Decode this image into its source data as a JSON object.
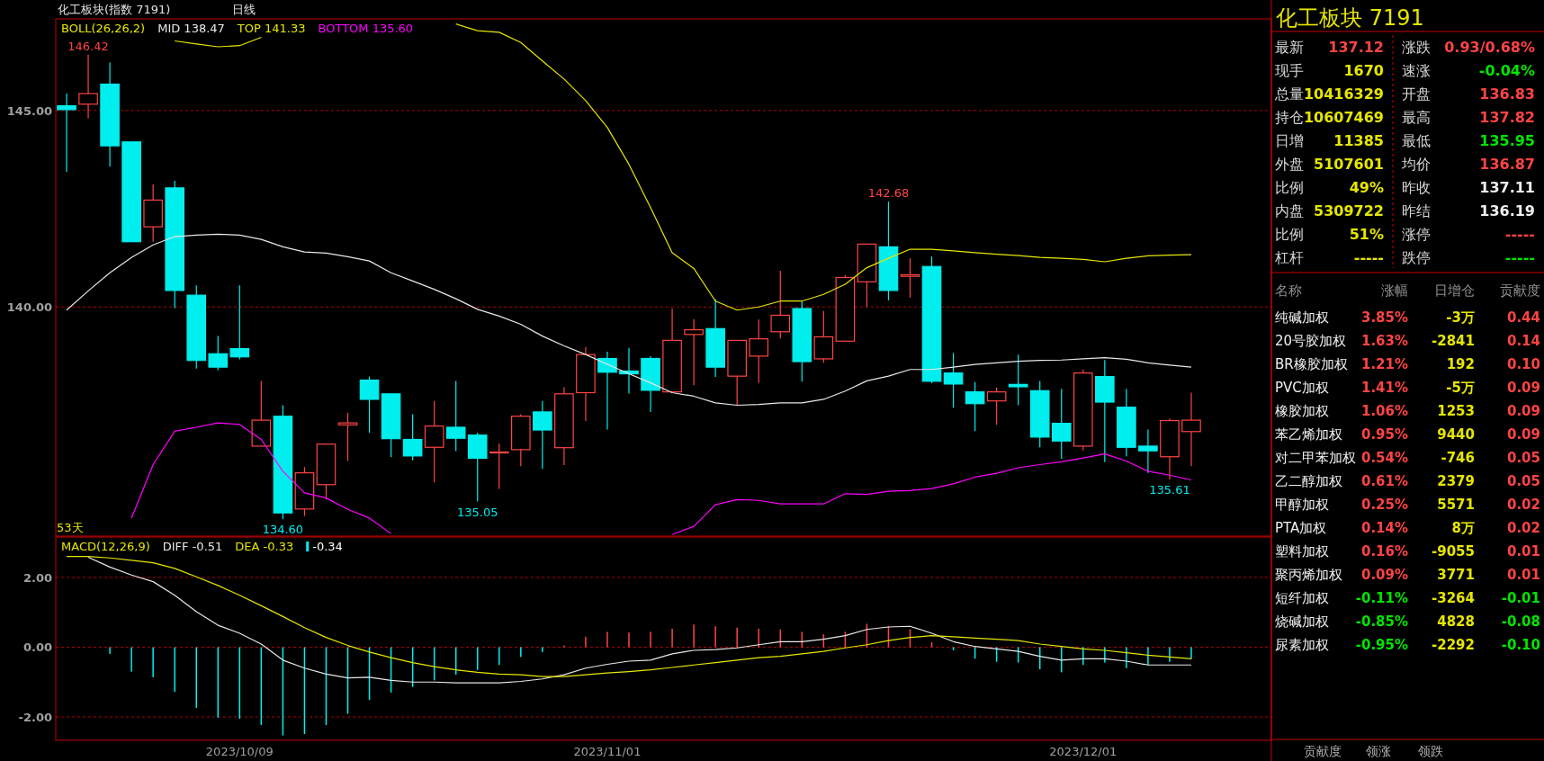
{
  "chart_data": [
    {
      "type": "candlestick",
      "title": "化工板块(指数 7191)",
      "subtitle": "日线",
      "categories": [
        null,
        null,
        null,
        null,
        null,
        null,
        null,
        null,
        "2023/10/09",
        null,
        null,
        null,
        null,
        null,
        null,
        null,
        null,
        null,
        null,
        null,
        null,
        null,
        null,
        null,
        null,
        "2023/11/01",
        null,
        null,
        null,
        null,
        null,
        null,
        null,
        null,
        null,
        null,
        null,
        null,
        null,
        null,
        null,
        null,
        null,
        null,
        null,
        null,
        null,
        "2023/12/01",
        null,
        null,
        null,
        null,
        null
      ],
      "ohlc": [
        [
          145.12,
          145.43,
          143.44,
          145.02
        ],
        [
          145.16,
          146.42,
          144.8,
          145.43
        ],
        [
          145.67,
          146.22,
          143.57,
          144.1
        ],
        [
          144.2,
          144.2,
          141.66,
          141.66
        ],
        [
          142.04,
          143.12,
          141.66,
          142.72
        ],
        [
          143.03,
          143.21,
          139.97,
          140.42
        ],
        [
          140.3,
          140.55,
          138.43,
          138.64
        ],
        [
          138.81,
          139.26,
          138.39,
          138.47
        ],
        [
          138.94,
          140.55,
          138.67,
          138.73
        ],
        [
          136.46,
          138.12,
          136.46,
          137.12
        ],
        [
          137.22,
          137.5,
          134.6,
          134.76
        ],
        [
          134.86,
          135.93,
          134.68,
          135.78
        ],
        [
          135.48,
          136.52,
          135.1,
          136.51
        ],
        [
          137.0,
          137.31,
          136.08,
          137.05
        ],
        [
          138.14,
          138.23,
          136.8,
          137.65
        ],
        [
          137.79,
          137.79,
          136.18,
          136.65
        ],
        [
          136.63,
          137.27,
          136.1,
          136.21
        ],
        [
          136.43,
          137.61,
          135.54,
          136.97
        ],
        [
          136.94,
          138.12,
          136.33,
          136.66
        ],
        [
          136.74,
          136.8,
          135.05,
          136.15
        ],
        [
          136.3,
          136.53,
          135.37,
          136.31
        ],
        [
          136.37,
          137.27,
          135.95,
          137.22
        ],
        [
          137.33,
          137.61,
          135.88,
          136.87
        ],
        [
          136.42,
          137.96,
          135.98,
          137.79
        ],
        [
          137.82,
          138.98,
          137.1,
          138.79
        ],
        [
          138.69,
          138.86,
          136.88,
          138.34
        ],
        [
          138.37,
          138.96,
          137.8,
          138.3
        ],
        [
          138.69,
          138.75,
          137.33,
          137.88
        ],
        [
          137.84,
          139.96,
          137.84,
          139.15
        ],
        [
          139.3,
          139.69,
          138.01,
          139.42
        ],
        [
          139.45,
          140.2,
          138.22,
          138.47
        ],
        [
          138.24,
          139.15,
          137.5,
          139.15
        ],
        [
          138.75,
          139.68,
          138.07,
          139.19
        ],
        [
          139.37,
          140.92,
          139.2,
          139.79
        ],
        [
          139.96,
          140.15,
          138.1,
          138.61
        ],
        [
          138.68,
          139.9,
          138.58,
          139.24
        ],
        [
          139.13,
          140.81,
          139.13,
          140.75
        ],
        [
          140.64,
          141.6,
          140.0,
          141.6
        ],
        [
          141.53,
          142.68,
          140.17,
          140.42
        ],
        [
          140.78,
          141.24,
          140.24,
          140.82
        ],
        [
          141.03,
          141.28,
          138.06,
          138.11
        ],
        [
          138.32,
          138.83,
          137.44,
          138.04
        ],
        [
          137.84,
          138.09,
          136.84,
          137.54
        ],
        [
          137.61,
          137.95,
          137.0,
          137.84
        ],
        [
          138.03,
          138.79,
          137.5,
          137.97
        ],
        [
          137.87,
          138.12,
          136.43,
          136.69
        ],
        [
          137.04,
          137.92,
          136.14,
          136.59
        ],
        [
          136.46,
          138.41,
          136.35,
          138.32
        ],
        [
          138.23,
          138.65,
          136.05,
          137.58
        ],
        [
          137.45,
          137.92,
          136.2,
          136.43
        ],
        [
          136.46,
          136.88,
          135.78,
          136.34
        ],
        [
          136.19,
          137.16,
          135.61,
          137.11
        ],
        [
          136.83,
          137.82,
          135.95,
          137.12
        ]
      ],
      "colors": [
        "#00eeee",
        "#ff4444",
        "#00eeee",
        "#00eeee",
        "#ff4444",
        "#00eeee",
        "#00eeee",
        "#00eeee",
        "#00eeee",
        "#ff4444",
        "#00eeee",
        "#ff4444",
        "#ff4444",
        "#ff4444",
        "#00eeee",
        "#00eeee",
        "#00eeee",
        "#ff4444",
        "#00eeee",
        "#00eeee",
        "#ff4444",
        "#ff4444",
        "#00eeee",
        "#ff4444",
        "#ff4444",
        "#00eeee",
        "#00eeee",
        "#00eeee",
        "#ff4444",
        "#ff4444",
        "#00eeee",
        "#ff4444",
        "#ff4444",
        "#ff4444",
        "#00eeee",
        "#ff4444",
        "#ff4444",
        "#ff4444",
        "#00eeee",
        "#ff4444",
        "#00eeee",
        "#00eeee",
        "#00eeee",
        "#ff4444",
        "#00eeee",
        "#00eeee",
        "#00eeee",
        "#ff4444",
        "#00eeee",
        "#00eeee",
        "#00eeee",
        "#ff4444",
        "#ff4444"
      ],
      "series": [
        {
          "name": "MID 138.47",
          "type": "line",
          "color": "#e8e8e8",
          "values": [
            139.92,
            140.41,
            140.87,
            141.26,
            141.58,
            141.79,
            141.83,
            141.85,
            141.83,
            141.72,
            141.53,
            141.4,
            141.37,
            141.28,
            141.17,
            140.87,
            140.66,
            140.45,
            140.21,
            139.94,
            139.77,
            139.56,
            139.26,
            139.01,
            138.79,
            138.54,
            138.3,
            138.07,
            137.82,
            137.73,
            137.56,
            137.5,
            137.52,
            137.56,
            137.56,
            137.65,
            137.86,
            138.12,
            138.24,
            138.41,
            138.41,
            138.47,
            138.54,
            138.58,
            138.62,
            138.64,
            138.65,
            138.68,
            138.71,
            138.67,
            138.58,
            138.52,
            138.47
          ]
        },
        {
          "name": "TOP 141.33",
          "type": "line",
          "color": "#e6e600",
          "values": [
            null,
            null,
            null,
            null,
            null,
            146.77,
            146.69,
            146.62,
            146.65,
            146.86,
            null,
            null,
            null,
            null,
            null,
            null,
            null,
            null,
            147.2,
            147.03,
            146.99,
            146.73,
            146.26,
            145.8,
            145.25,
            144.57,
            143.63,
            142.53,
            141.38,
            140.98,
            140.15,
            139.92,
            140.0,
            140.15,
            140.15,
            140.32,
            140.58,
            141.0,
            141.24,
            141.47,
            141.47,
            141.43,
            141.38,
            141.34,
            141.31,
            141.26,
            141.24,
            141.21,
            141.15,
            141.24,
            141.3,
            141.32,
            141.33
          ]
        },
        {
          "name": "BOTTOM 135.60",
          "type": "line",
          "color": "#ff00ff",
          "values": [
            null,
            null,
            null,
            134.63,
            135.99,
            136.84,
            136.94,
            137.05,
            137.01,
            136.63,
            135.82,
            135.27,
            135.14,
            134.85,
            134.63,
            134.23,
            null,
            null,
            null,
            null,
            null,
            null,
            null,
            null,
            null,
            null,
            null,
            null,
            134.21,
            134.42,
            134.97,
            135.1,
            135.08,
            134.99,
            134.99,
            134.99,
            135.25,
            135.23,
            135.31,
            135.33,
            135.38,
            135.5,
            135.67,
            135.77,
            135.91,
            135.99,
            136.06,
            136.16,
            136.26,
            136.08,
            135.82,
            135.72,
            135.6
          ]
        }
      ],
      "legend": "top left",
      "legend_title": "BOLL(26,26,2)",
      "ylim": [
        134.17,
        147.33
      ],
      "yticks": [
        {
          "value": 140,
          "label": "140.00"
        },
        {
          "value": 145,
          "label": "145.00"
        }
      ],
      "grid": "y",
      "tick_labels": "y",
      "annotations": [
        {
          "text": "146.42",
          "y": 146.42
        },
        {
          "text": "142.68",
          "y": 142.68
        },
        {
          "text": "134.60",
          "y": 134.6
        },
        {
          "text": "135.05",
          "y": 135.05
        },
        {
          "text": "135.61",
          "y": 135.61
        },
        "53天"
      ]
    },
    {
      "type": "bar",
      "categories": [
        null,
        null,
        null,
        null,
        null,
        null,
        null,
        null,
        "2023/10/09",
        null,
        null,
        null,
        null,
        null,
        null,
        null,
        null,
        null,
        null,
        null,
        null,
        null,
        null,
        null,
        null,
        "2023/11/01",
        null,
        null,
        null,
        null,
        null,
        null,
        null,
        null,
        null,
        null,
        null,
        null,
        null,
        null,
        null,
        null,
        null,
        null,
        null,
        null,
        null,
        "2023/12/01",
        null,
        null,
        null,
        null,
        null
      ],
      "series": [
        {
          "name": "DIFF -0.51",
          "type": "line",
          "color": "#e8e8e8",
          "values": [
            null,
            2.58,
            2.3,
            2.07,
            1.88,
            1.49,
            1.02,
            0.63,
            0.4,
            0.09,
            -0.37,
            -0.6,
            -0.77,
            -0.88,
            -0.86,
            -0.95,
            -1.0,
            -1.0,
            -1.02,
            -1.02,
            -1.02,
            -0.98,
            -0.91,
            -0.79,
            -0.6,
            -0.49,
            -0.4,
            -0.37,
            -0.19,
            -0.09,
            -0.07,
            -0.02,
            0.07,
            0.16,
            0.16,
            0.23,
            0.33,
            0.51,
            0.58,
            0.6,
            0.4,
            0.16,
            0.02,
            -0.05,
            -0.12,
            -0.26,
            -0.37,
            -0.33,
            -0.33,
            -0.4,
            -0.51,
            -0.51,
            -0.51
          ]
        },
        {
          "name": "DEA -0.33",
          "type": "line",
          "color": "#e6e600",
          "values": [
            2.6,
            2.6,
            2.56,
            2.49,
            2.42,
            2.26,
            2.02,
            1.77,
            1.49,
            1.19,
            0.88,
            0.56,
            0.28,
            0.05,
            -0.14,
            -0.3,
            -0.44,
            -0.56,
            -0.65,
            -0.72,
            -0.77,
            -0.79,
            -0.84,
            -0.84,
            -0.79,
            -0.74,
            -0.7,
            -0.65,
            -0.58,
            -0.51,
            -0.44,
            -0.37,
            -0.3,
            -0.26,
            -0.19,
            -0.12,
            -0.02,
            0.07,
            0.19,
            0.28,
            0.33,
            0.3,
            0.26,
            0.23,
            0.19,
            0.09,
            0.02,
            -0.05,
            -0.09,
            -0.16,
            -0.23,
            -0.28,
            -0.33
          ]
        },
        {
          "name": "-0.34",
          "type": "bar",
          "color": "#ffffff",
          "values": [
            null,
            null,
            -0.19,
            -0.7,
            -0.86,
            -1.28,
            -1.74,
            -2.02,
            -2.05,
            -2.23,
            -2.53,
            -2.49,
            -2.23,
            -1.91,
            -1.51,
            -1.3,
            -1.14,
            -0.95,
            -0.79,
            -0.65,
            -0.51,
            -0.28,
            -0.14,
            0.05,
            0.3,
            0.44,
            0.42,
            0.44,
            0.53,
            0.65,
            0.6,
            0.56,
            0.53,
            0.51,
            0.44,
            0.37,
            0.44,
            0.67,
            0.6,
            0.51,
            0.14,
            -0.09,
            -0.33,
            -0.42,
            -0.44,
            -0.63,
            -0.72,
            -0.51,
            -0.44,
            -0.6,
            -0.51,
            -0.42,
            -0.34
          ],
          "colors": [
            null,
            null,
            "#00eeee",
            "#00eeee",
            "#00eeee",
            "#00eeee",
            "#00eeee",
            "#00eeee",
            "#00eeee",
            "#00eeee",
            "#00eeee",
            "#00eeee",
            "#00eeee",
            "#00eeee",
            "#00eeee",
            "#00eeee",
            "#00eeee",
            "#00eeee",
            "#00eeee",
            "#00eeee",
            "#00eeee",
            "#00eeee",
            "#00eeee",
            "#ff4444",
            "#ff4444",
            "#ff4444",
            "#ff4444",
            "#ff4444",
            "#ff4444",
            "#ff4444",
            "#ff4444",
            "#ff4444",
            "#ff4444",
            "#ff4444",
            "#ff4444",
            "#ff4444",
            "#ff4444",
            "#ff4444",
            "#ff4444",
            "#ff4444",
            "#ff4444",
            "#00eeee",
            "#00eeee",
            "#00eeee",
            "#00eeee",
            "#00eeee",
            "#00eeee",
            "#00eeee",
            "#00eeee",
            "#00eeee",
            "#00eeee",
            "#00eeee",
            "#00eeee"
          ]
        }
      ],
      "legend": "top left",
      "legend_title": "MACD(12,26,9)",
      "ylim": [
        -2.67,
        3.16
      ],
      "yticks": [
        {
          "value": 2,
          "label": "2.00"
        },
        {
          "value": 0,
          "label": "0.00"
        },
        {
          "value": -2,
          "label": "-2.00"
        }
      ],
      "grid": "y"
    },
    {
      "type": "other",
      "title": "化工板块 7191",
      "annotations": [
        "最新",
        "137.12",
        "涨跌",
        "0.93/0.68%",
        "现手",
        "1670",
        "速涨",
        "-0.04%",
        "总量",
        "10416329",
        "开盘",
        "136.83",
        "持仓",
        "10607469",
        "最高",
        "137.82",
        "日增",
        "11385",
        "最低",
        "135.95",
        "外盘",
        "5107601",
        "均价",
        "136.87",
        "比例",
        "49%",
        "昨收",
        "137.11",
        "内盘",
        "5309722",
        "昨结",
        "136.19",
        "比例",
        "51%",
        "涨停",
        "-----",
        "杠杆",
        "-----",
        "跌停",
        "-----"
      ],
      "colors": [
        "#d8d8d8",
        "#ff4444",
        "#d8d8d8",
        "#ff4444",
        "#d8d8d8",
        "#e6e600",
        "#d8d8d8",
        "#00e600",
        "#d8d8d8",
        "#e6e600",
        "#d8d8d8",
        "#ff4444",
        "#d8d8d8",
        "#e6e600",
        "#d8d8d8",
        "#ff4444",
        "#d8d8d8",
        "#e6e600",
        "#d8d8d8",
        "#00e600",
        "#d8d8d8",
        "#e6e600",
        "#d8d8d8",
        "#ff4444",
        "#d8d8d8",
        "#e6e600",
        "#d8d8d8",
        "#f0f0f0",
        "#d8d8d8",
        "#e6e600",
        "#d8d8d8",
        "#f0f0f0",
        "#d8d8d8",
        "#e6e600",
        "#d8d8d8",
        "#ff4444",
        "#d8d8d8",
        "#e6e600",
        "#d8d8d8",
        "#00e600"
      ]
    },
    {
      "type": "other",
      "categories": [
        "名称",
        "涨幅",
        "日增仓",
        "贡献度"
      ],
      "cell_labels": [
        [
          "纯碱加权",
          "3.85%",
          "-3万",
          "0.44"
        ],
        [
          "20号胶加权",
          "1.63%",
          "-2841",
          "0.14"
        ],
        [
          "BR橡胶加权",
          "1.21%",
          "192",
          "0.10"
        ],
        [
          "PVC加权",
          "1.41%",
          "-5万",
          "0.09"
        ],
        [
          "橡胶加权",
          "1.06%",
          "1253",
          "0.09"
        ],
        [
          "苯乙烯加权",
          "0.95%",
          "9440",
          "0.09"
        ],
        [
          "对二甲苯加权",
          "0.54%",
          "-746",
          "0.05"
        ],
        [
          "乙二醇加权",
          "0.61%",
          "2379",
          "0.05"
        ],
        [
          "甲醇加权",
          "0.25%",
          "5571",
          "0.02"
        ],
        [
          "PTA加权",
          "0.14%",
          "8万",
          "0.02"
        ],
        [
          "塑料加权",
          "0.16%",
          "-9055",
          "0.01"
        ],
        [
          "聚丙烯加权",
          "0.09%",
          "3771",
          "0.01"
        ],
        [
          "短纤加权",
          "-0.11%",
          "-3264",
          "-0.01"
        ],
        [
          "烧碱加权",
          "-0.85%",
          "4828",
          "-0.08"
        ],
        [
          "尿素加权",
          "-0.95%",
          "-2292",
          "-0.10"
        ]
      ],
      "colors": [
        [
          "#f0f0f0",
          "#ff4444",
          "#e6e600",
          "#ff4444"
        ],
        [
          "#f0f0f0",
          "#ff4444",
          "#e6e600",
          "#ff4444"
        ],
        [
          "#f0f0f0",
          "#ff4444",
          "#e6e600",
          "#ff4444"
        ],
        [
          "#f0f0f0",
          "#ff4444",
          "#e6e600",
          "#ff4444"
        ],
        [
          "#f0f0f0",
          "#ff4444",
          "#e6e600",
          "#ff4444"
        ],
        [
          "#f0f0f0",
          "#ff4444",
          "#e6e600",
          "#ff4444"
        ],
        [
          "#f0f0f0",
          "#ff4444",
          "#e6e600",
          "#ff4444"
        ],
        [
          "#f0f0f0",
          "#ff4444",
          "#e6e600",
          "#ff4444"
        ],
        [
          "#f0f0f0",
          "#ff4444",
          "#e6e600",
          "#ff4444"
        ],
        [
          "#f0f0f0",
          "#ff4444",
          "#e6e600",
          "#ff4444"
        ],
        [
          "#f0f0f0",
          "#ff4444",
          "#e6e600",
          "#ff4444"
        ],
        [
          "#f0f0f0",
          "#ff4444",
          "#e6e600",
          "#ff4444"
        ],
        [
          "#f0f0f0",
          "#00e600",
          "#e6e600",
          "#00e600"
        ],
        [
          "#f0f0f0",
          "#00e600",
          "#e6e600",
          "#00e600"
        ],
        [
          "#f0f0f0",
          "#00e600",
          "#e6e600",
          "#00e600"
        ]
      ],
      "annotations": [
        "贡献度",
        "领涨",
        "领跌"
      ]
    }
  ]
}
